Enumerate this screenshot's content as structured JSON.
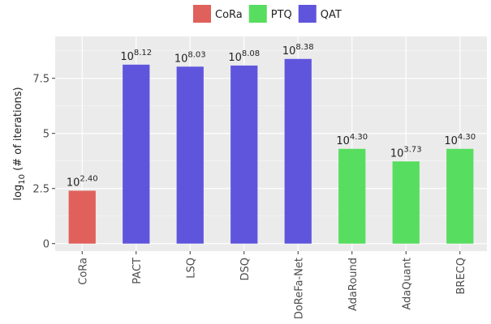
{
  "chart_data": {
    "type": "bar",
    "y_label": [
      "log",
      "10",
      " (# of iterations)"
    ],
    "categories": [
      "CoRa",
      "PACT",
      "LSQ",
      "DSQ",
      "DoReFa-Net",
      "AdaRound",
      "AdaQuant",
      "BRECQ"
    ],
    "series": [
      {
        "name": "CoRa",
        "color": "#e0605c",
        "values": [
          2.4,
          null,
          null,
          null,
          null,
          null,
          null,
          null
        ]
      },
      {
        "name": "PTQ",
        "color": "#57dd5f",
        "values": [
          null,
          null,
          null,
          null,
          null,
          4.3,
          3.73,
          4.3
        ]
      },
      {
        "name": "QAT",
        "color": "#5f55dd",
        "values": [
          null,
          8.12,
          8.03,
          8.08,
          8.38,
          null,
          null,
          null
        ]
      }
    ],
    "value_label_prefix": "10",
    "value_labels": [
      "2.40",
      "8.12",
      "8.03",
      "8.08",
      "8.38",
      "4.30",
      "3.73",
      "4.30"
    ],
    "ylim": [
      -0.34,
      9.4
    ],
    "yticks": [
      0,
      2.5,
      5,
      7.5
    ],
    "grid": true,
    "legend": "top"
  }
}
